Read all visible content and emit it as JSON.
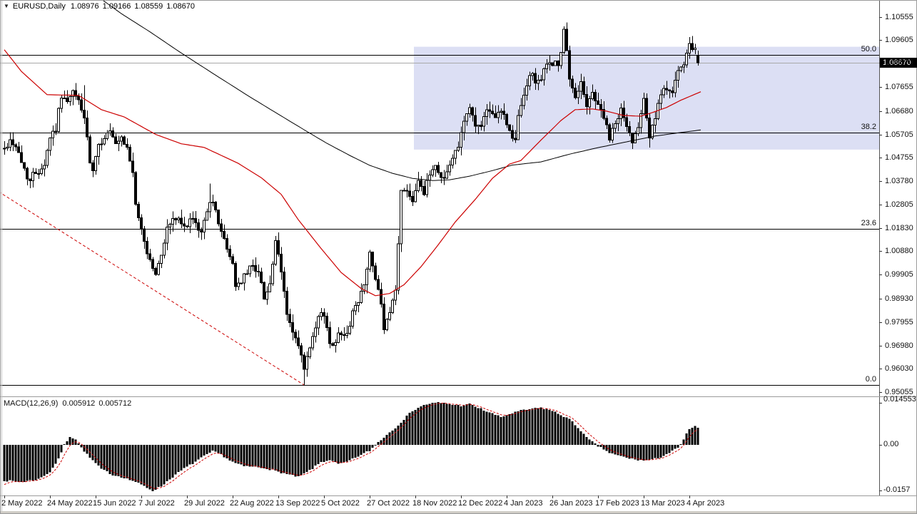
{
  "window": {
    "dropdown_icon": "▼",
    "symbol_label": "EURUSD,Daily",
    "ohlc": {
      "open": "1.08976",
      "high": "1.09166",
      "low": "1.08559",
      "close": "1.08670"
    }
  },
  "price_axis": {
    "labels": [
      "1.10555",
      "1.09605",
      "1.08670",
      "1.07655",
      "1.06680",
      "1.05705",
      "1.04755",
      "1.03780",
      "1.02805",
      "1.01830",
      "1.00880",
      "0.99905",
      "0.98930",
      "0.97955",
      "0.96980",
      "0.96030",
      "0.95055"
    ],
    "current_price": "1.08670"
  },
  "time_axis": {
    "labels": [
      "2 May 2022",
      "24 May 2022",
      "15 Jun 2022",
      "7 Jul 2022",
      "29 Jul 2022",
      "22 Aug 2022",
      "13 Sep 2022",
      "5 Oct 2022",
      "27 Oct 2022",
      "18 Nov 2022",
      "12 Dec 2022",
      "4 Jan 2023",
      "26 Jan 2023",
      "17 Feb 2023",
      "13 Mar 2023",
      "4 Apr 2023"
    ],
    "bars_per_label": 16
  },
  "fibonacci": {
    "levels": [
      {
        "label": "50.0",
        "price": 1.09005
      },
      {
        "label": "38.2",
        "price": 1.05782
      },
      {
        "label": "23.6",
        "price": 1.01796
      },
      {
        "label": "0.0",
        "price": 0.9535
      }
    ]
  },
  "macd_panel": {
    "name": "MACD(12,26,9)",
    "main_value": "0.005912",
    "signal_value": "0.005712",
    "axis_top": "0.014553",
    "axis_zero": "0.00",
    "axis_bottom": "-0.0157"
  },
  "colors": {
    "up_candle": "#ffffff",
    "down_candle": "#000000",
    "candle_outline": "#000000",
    "ma_slow": "#000000",
    "ma_fast": "#cc0000",
    "fib_line": "#000000",
    "trendline": "#cc0000",
    "region_fill": "#dcdff4",
    "price_line": "#a8a8a8",
    "price_tag_bg": "#000000",
    "price_tag_text": "#ffffff",
    "histogram": "#000000",
    "signal_line": "#cc0000",
    "axis_line": "#555555",
    "border": "#9b9b9b"
  },
  "chart_data": [
    {
      "type": "candlestick",
      "title": "EURUSD Daily",
      "bars": 244,
      "ylim": [
        0.95055,
        1.10555
      ],
      "close_waypoints": [
        [
          0,
          1.051
        ],
        [
          2,
          1.0545
        ],
        [
          4,
          1.0525
        ],
        [
          6,
          1.0455
        ],
        [
          8,
          1.04
        ],
        [
          9,
          1.0378
        ],
        [
          10,
          1.0405
        ],
        [
          12,
          1.0422
        ],
        [
          14,
          1.0448
        ],
        [
          16,
          1.0562
        ],
        [
          18,
          1.0595
        ],
        [
          20,
          1.0735
        ],
        [
          22,
          1.07
        ],
        [
          24,
          1.0742
        ],
        [
          26,
          1.0712
        ],
        [
          28,
          1.064
        ],
        [
          30,
          1.0452
        ],
        [
          31,
          1.0415
        ],
        [
          33,
          1.052
        ],
        [
          35,
          1.0562
        ],
        [
          37,
          1.0582
        ],
        [
          39,
          1.0522
        ],
        [
          41,
          1.0548
        ],
        [
          43,
          1.0512
        ],
        [
          45,
          1.0422
        ],
        [
          46,
          1.0267
        ],
        [
          48,
          1.0182
        ],
        [
          50,
          1.0082
        ],
        [
          52,
          1.0022
        ],
        [
          53,
          0.9987
        ],
        [
          55,
          1.0077
        ],
        [
          57,
          1.0182
        ],
        [
          59,
          1.0222
        ],
        [
          61,
          1.0216
        ],
        [
          63,
          1.0182
        ],
        [
          65,
          1.0222
        ],
        [
          67,
          1.0196
        ],
        [
          69,
          1.0162
        ],
        [
          71,
          1.0262
        ],
        [
          72,
          1.0302
        ],
        [
          74,
          1.0252
        ],
        [
          76,
          1.0172
        ],
        [
          78,
          1.0092
        ],
        [
          80,
          1.0042
        ],
        [
          81,
          0.9942
        ],
        [
          83,
          0.9967
        ],
        [
          85,
          0.9997
        ],
        [
          87,
          1.0037
        ],
        [
          89,
          0.9997
        ],
        [
          91,
          0.9902
        ],
        [
          93,
          0.9952
        ],
        [
          95,
          1.0122
        ],
        [
          97,
          1.0002
        ],
        [
          99,
          0.9832
        ],
        [
          101,
          0.9752
        ],
        [
          103,
          0.9692
        ],
        [
          105,
          0.9602
        ],
        [
          106,
          0.9642
        ],
        [
          108,
          0.9722
        ],
        [
          110,
          0.9812
        ],
        [
          112,
          0.9832
        ],
        [
          114,
          0.9702
        ],
        [
          116,
          0.9722
        ],
        [
          118,
          0.9757
        ],
        [
          120,
          0.9737
        ],
        [
          122,
          0.9842
        ],
        [
          124,
          0.9872
        ],
        [
          126,
          0.9962
        ],
        [
          128,
          1.0082
        ],
        [
          130,
          0.9962
        ],
        [
          132,
          0.9882
        ],
        [
          133,
          0.9752
        ],
        [
          135,
          0.9832
        ],
        [
          137,
          0.9922
        ],
        [
          139,
          1.0332
        ],
        [
          141,
          1.0342
        ],
        [
          143,
          1.0302
        ],
        [
          145,
          1.0392
        ],
        [
          147,
          1.0322
        ],
        [
          149,
          1.0412
        ],
        [
          151,
          1.0442
        ],
        [
          153,
          1.0392
        ],
        [
          155,
          1.0412
        ],
        [
          157,
          1.0472
        ],
        [
          159,
          1.0532
        ],
        [
          161,
          1.0632
        ],
        [
          163,
          1.0682
        ],
        [
          165,
          1.0602
        ],
        [
          167,
          1.0617
        ],
        [
          169,
          1.0662
        ],
        [
          171,
          1.0642
        ],
        [
          173,
          1.0662
        ],
        [
          175,
          1.0655
        ],
        [
          177,
          1.058
        ],
        [
          179,
          1.0545
        ],
        [
          180,
          1.064
        ],
        [
          182,
          1.073
        ],
        [
          184,
          1.082
        ],
        [
          186,
          1.0795
        ],
        [
          188,
          1.08
        ],
        [
          190,
          1.0855
        ],
        [
          192,
          1.087
        ],
        [
          194,
          1.0855
        ],
        [
          195,
          1.0905
        ],
        [
          196,
          1.0995
        ],
        [
          197,
          1.091
        ],
        [
          198,
          1.0795
        ],
        [
          200,
          1.0725
        ],
        [
          202,
          1.0795
        ],
        [
          204,
          1.068
        ],
        [
          206,
          1.0745
        ],
        [
          208,
          1.0695
        ],
        [
          210,
          1.0645
        ],
        [
          212,
          1.055
        ],
        [
          214,
          1.0615
        ],
        [
          216,
          1.0675
        ],
        [
          218,
          1.06
        ],
        [
          220,
          1.0545
        ],
        [
          222,
          1.061
        ],
        [
          224,
          1.073
        ],
        [
          226,
          1.056
        ],
        [
          228,
          1.064
        ],
        [
          230,
          1.073
        ],
        [
          232,
          1.0765
        ],
        [
          234,
          1.0755
        ],
        [
          236,
          1.083
        ],
        [
          238,
          1.0845
        ],
        [
          239,
          1.0905
        ],
        [
          240,
          1.095
        ],
        [
          241,
          1.091
        ],
        [
          242,
          1.0925
        ],
        [
          243,
          1.0867
        ]
      ],
      "overrides": {
        "9": {
          "low": 1.0349
        },
        "28": {
          "high": 1.0774
        },
        "72": {
          "high": 1.0368
        },
        "105": {
          "low": 0.9535
        },
        "128": {
          "high": 1.0094
        },
        "197": {
          "high": 1.1033
        },
        "226": {
          "low": 1.0516
        },
        "240": {
          "high": 1.0973
        },
        "243": {
          "open": 1.08976,
          "high": 1.09166,
          "low": 1.08559,
          "close": 1.0867
        }
      },
      "ma_slow_waypoints": [
        [
          34,
          1.113
        ],
        [
          41,
          1.107
        ],
        [
          51,
          1.0995
        ],
        [
          61,
          1.0915
        ],
        [
          72,
          1.0831
        ],
        [
          86,
          1.0726
        ],
        [
          98,
          1.064
        ],
        [
          106,
          1.0583
        ],
        [
          113,
          1.0534
        ],
        [
          121,
          1.0484
        ],
        [
          128,
          1.0443
        ],
        [
          136,
          1.041
        ],
        [
          143,
          1.0389
        ],
        [
          150,
          1.038
        ],
        [
          156,
          1.0383
        ],
        [
          163,
          1.0398
        ],
        [
          171,
          1.0421
        ],
        [
          178,
          1.0444
        ],
        [
          188,
          1.0457
        ],
        [
          198,
          1.0489
        ],
        [
          208,
          1.0516
        ],
        [
          218,
          1.054
        ],
        [
          228,
          1.0564
        ],
        [
          236,
          1.0577
        ],
        [
          244,
          1.0589
        ]
      ],
      "ma_fast_waypoints": [
        [
          0,
          1.0921
        ],
        [
          6,
          1.0831
        ],
        [
          15,
          1.0735
        ],
        [
          26,
          1.0732
        ],
        [
          34,
          1.0673
        ],
        [
          42,
          1.0643
        ],
        [
          53,
          1.0571
        ],
        [
          62,
          1.0532
        ],
        [
          70,
          1.0517
        ],
        [
          82,
          1.0451
        ],
        [
          90,
          1.0392
        ],
        [
          97,
          1.0323
        ],
        [
          103,
          1.0218
        ],
        [
          111,
          1.0099
        ],
        [
          118,
          1.0
        ],
        [
          125,
          0.9934
        ],
        [
          130,
          0.9904
        ],
        [
          135,
          0.9913
        ],
        [
          140,
          0.9949
        ],
        [
          146,
          1.0024
        ],
        [
          152,
          1.0114
        ],
        [
          158,
          1.0209
        ],
        [
          165,
          1.0302
        ],
        [
          171,
          1.0389
        ],
        [
          177,
          1.0448
        ],
        [
          181,
          1.0463
        ],
        [
          188,
          1.0547
        ],
        [
          195,
          1.0628
        ],
        [
          200,
          1.0673
        ],
        [
          206,
          1.0676
        ],
        [
          211,
          1.0667
        ],
        [
          217,
          1.0649
        ],
        [
          223,
          1.0646
        ],
        [
          227,
          1.0661
        ],
        [
          232,
          1.0682
        ],
        [
          237,
          1.0712
        ],
        [
          244,
          1.0747
        ]
      ],
      "fib_trendline": {
        "from_bar": -2,
        "from_price": 1.0334,
        "to_bar": 105,
        "to_price": 0.9535
      },
      "highlight_region": {
        "from_bar": 144,
        "to_bar": 307,
        "price_top": 1.0933,
        "price_bottom": 1.0508
      }
    },
    {
      "type": "macd_histogram",
      "title": "MACD(12,26,9)",
      "ylim": [
        -0.0157,
        0.014553
      ],
      "histogram_waypoints": [
        [
          0,
          -0.01225
        ],
        [
          6,
          -0.01274
        ],
        [
          12,
          -0.01176
        ],
        [
          16,
          -0.00931
        ],
        [
          19,
          -0.0049
        ],
        [
          21,
          0
        ],
        [
          23,
          0.00294
        ],
        [
          25,
          0.00196
        ],
        [
          27,
          -0.00098
        ],
        [
          30,
          -0.00441
        ],
        [
          34,
          -0.00833
        ],
        [
          38,
          -0.01029
        ],
        [
          42,
          -0.01127
        ],
        [
          46,
          -0.01274
        ],
        [
          50,
          -0.0147
        ],
        [
          52,
          -0.01568
        ],
        [
          55,
          -0.01421
        ],
        [
          58,
          -0.01176
        ],
        [
          62,
          -0.00882
        ],
        [
          66,
          -0.00637
        ],
        [
          70,
          -0.00392
        ],
        [
          73,
          -0.00221
        ],
        [
          76,
          -0.00343
        ],
        [
          80,
          -0.00588
        ],
        [
          84,
          -0.00735
        ],
        [
          88,
          -0.0076
        ],
        [
          92,
          -0.00809
        ],
        [
          96,
          -0.00931
        ],
        [
          100,
          -0.01029
        ],
        [
          103,
          -0.01103
        ],
        [
          107,
          -0.00882
        ],
        [
          111,
          -0.00588
        ],
        [
          114,
          -0.00515
        ],
        [
          117,
          -0.00662
        ],
        [
          120,
          -0.00588
        ],
        [
          124,
          -0.00392
        ],
        [
          128,
          -0.00196
        ],
        [
          131,
          0.00098
        ],
        [
          134,
          0.00343
        ],
        [
          137,
          0.00588
        ],
        [
          140,
          0.00882
        ],
        [
          143,
          0.01176
        ],
        [
          146,
          0.01323
        ],
        [
          149,
          0.01421
        ],
        [
          152,
          0.01446
        ],
        [
          156,
          0.01397
        ],
        [
          160,
          0.01348
        ],
        [
          163,
          0.01397
        ],
        [
          166,
          0.01274
        ],
        [
          169,
          0.01152
        ],
        [
          172,
          0.01029
        ],
        [
          174,
          0.00956
        ],
        [
          177,
          0.01054
        ],
        [
          180,
          0.01152
        ],
        [
          184,
          0.01225
        ],
        [
          188,
          0.01274
        ],
        [
          191,
          0.01201
        ],
        [
          194,
          0.01078
        ],
        [
          198,
          0.00882
        ],
        [
          202,
          0.0049
        ],
        [
          204,
          0.00245
        ],
        [
          206,
          0.00098
        ],
        [
          208,
          -0.00049
        ],
        [
          210,
          -0.00147
        ],
        [
          212,
          -0.0027
        ],
        [
          214,
          -0.00343
        ],
        [
          217,
          -0.00417
        ],
        [
          220,
          -0.0049
        ],
        [
          224,
          -0.00539
        ],
        [
          227,
          -0.00515
        ],
        [
          230,
          -0.00417
        ],
        [
          232,
          -0.00319
        ],
        [
          234,
          -0.00221
        ],
        [
          236,
          -0.00098
        ],
        [
          237,
          0
        ],
        [
          238,
          0.00196
        ],
        [
          239,
          0.0039
        ],
        [
          240,
          0.0051
        ],
        [
          241,
          0.0058
        ],
        [
          242,
          0.00635
        ],
        [
          243,
          0.005912
        ]
      ],
      "signal_ema_alpha": 0.35,
      "signal_seed": -0.0142
    }
  ]
}
